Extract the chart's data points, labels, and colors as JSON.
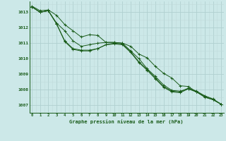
{
  "title": "Graphe pression niveau de la mer (hPa)",
  "bg_color": "#cce8e8",
  "grid_major_color": "#b0d0d0",
  "grid_minor_color": "#c0dada",
  "line_color": "#1a5c1a",
  "marker_color": "#1a5c1a",
  "xlim": [
    -0.3,
    23.3
  ],
  "ylim": [
    1006.5,
    1013.7
  ],
  "xticks": [
    0,
    1,
    2,
    3,
    4,
    5,
    6,
    7,
    8,
    9,
    10,
    11,
    12,
    13,
    14,
    15,
    16,
    17,
    18,
    19,
    20,
    21,
    22,
    23
  ],
  "yticks": [
    1007,
    1008,
    1009,
    1010,
    1011,
    1012,
    1013
  ],
  "series": [
    [
      1013.4,
      1013.1,
      1013.15,
      1012.8,
      1012.2,
      1011.8,
      1011.4,
      1011.55,
      1011.5,
      1011.05,
      1011.05,
      1011.0,
      1010.8,
      1010.3,
      1010.05,
      1009.5,
      1009.05,
      1008.75,
      1008.25,
      1008.2,
      1007.85,
      1007.5,
      1007.35,
      1007.05
    ],
    [
      1013.35,
      1013.0,
      1013.1,
      1012.3,
      1011.8,
      1011.15,
      1010.8,
      1010.9,
      1011.0,
      1011.05,
      1011.05,
      1011.0,
      1010.5,
      1010.0,
      1009.35,
      1008.85,
      1008.3,
      1007.95,
      1007.9,
      1008.05,
      1007.85,
      1007.55,
      1007.35,
      1007.05
    ],
    [
      1013.35,
      1013.0,
      1013.1,
      1012.25,
      1011.15,
      1010.65,
      1010.55,
      1010.55,
      1010.65,
      1010.9,
      1011.0,
      1010.95,
      1010.45,
      1009.8,
      1009.3,
      1008.75,
      1008.2,
      1007.9,
      1007.85,
      1008.1,
      1007.9,
      1007.6,
      1007.4,
      1007.05
    ],
    [
      1013.35,
      1013.0,
      1013.1,
      1012.25,
      1011.1,
      1010.6,
      1010.5,
      1010.5,
      1010.65,
      1010.9,
      1010.95,
      1010.9,
      1010.4,
      1009.75,
      1009.25,
      1008.7,
      1008.15,
      1007.85,
      1007.8,
      1008.05,
      1007.85,
      1007.55,
      1007.35,
      1007.05
    ]
  ]
}
